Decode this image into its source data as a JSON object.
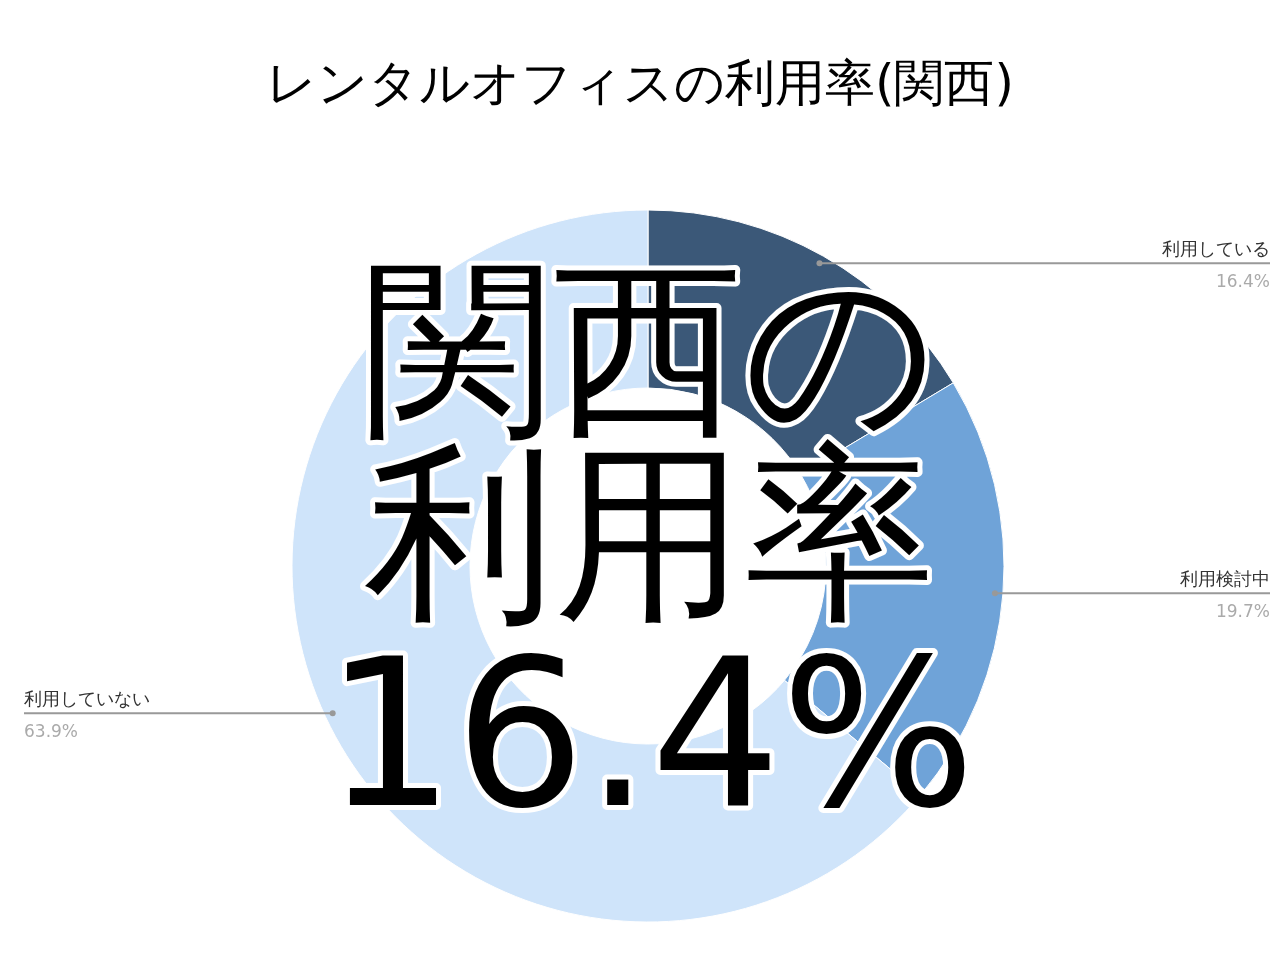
{
  "chart_data": {
    "type": "donut",
    "title": "レンタルオフィスの利用率(関西)",
    "categories": [
      "利用している",
      "利用検討中",
      "利用していない"
    ],
    "values": [
      16.4,
      19.7,
      63.9
    ],
    "colors": [
      "#3b5878",
      "#6fa3d8",
      "#cfe4fa"
    ],
    "value_labels": [
      "16.4%",
      "19.7%",
      "63.9%"
    ],
    "annotations": [
      "関西の",
      "利用率",
      "16.4%"
    ]
  }
}
